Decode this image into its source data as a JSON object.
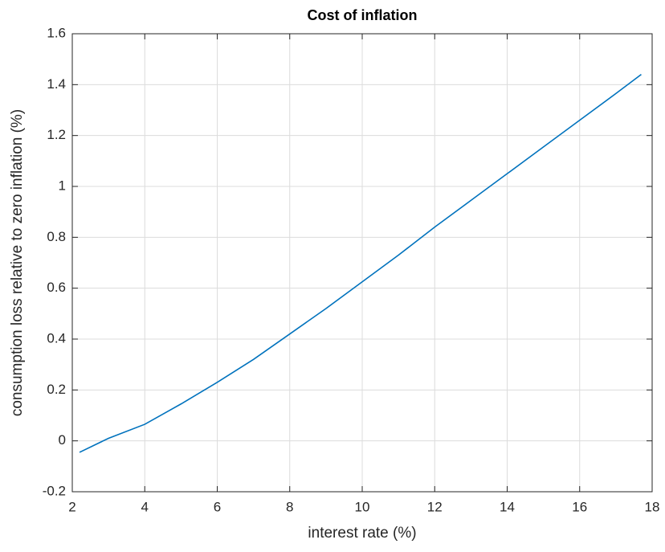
{
  "chart_data": {
    "type": "line",
    "title": "Cost of inflation",
    "x_label": "interest rate (%)",
    "y_label": "consumption loss relative to zero inflation (%)",
    "x": [
      2.2,
      3,
      4,
      5,
      6,
      7,
      8,
      9,
      10,
      11,
      12,
      13,
      14,
      15,
      16,
      17,
      17.7
    ],
    "series": [
      {
        "color": "#0072bd",
        "values": [
          -0.045,
          0.01,
          0.065,
          0.145,
          0.23,
          0.32,
          0.42,
          0.52,
          0.625,
          0.73,
          0.84,
          0.945,
          1.05,
          1.155,
          1.26,
          1.365,
          1.44
        ]
      }
    ],
    "xlim": [
      2,
      18
    ],
    "xticks": [
      2,
      4,
      6,
      8,
      10,
      12,
      14,
      16,
      18
    ],
    "ylim": [
      -0.2,
      1.6
    ],
    "yticks": [
      -0.2,
      0,
      0.2,
      0.4,
      0.6,
      0.8,
      1,
      1.2,
      1.4,
      1.6
    ],
    "grid": true
  }
}
